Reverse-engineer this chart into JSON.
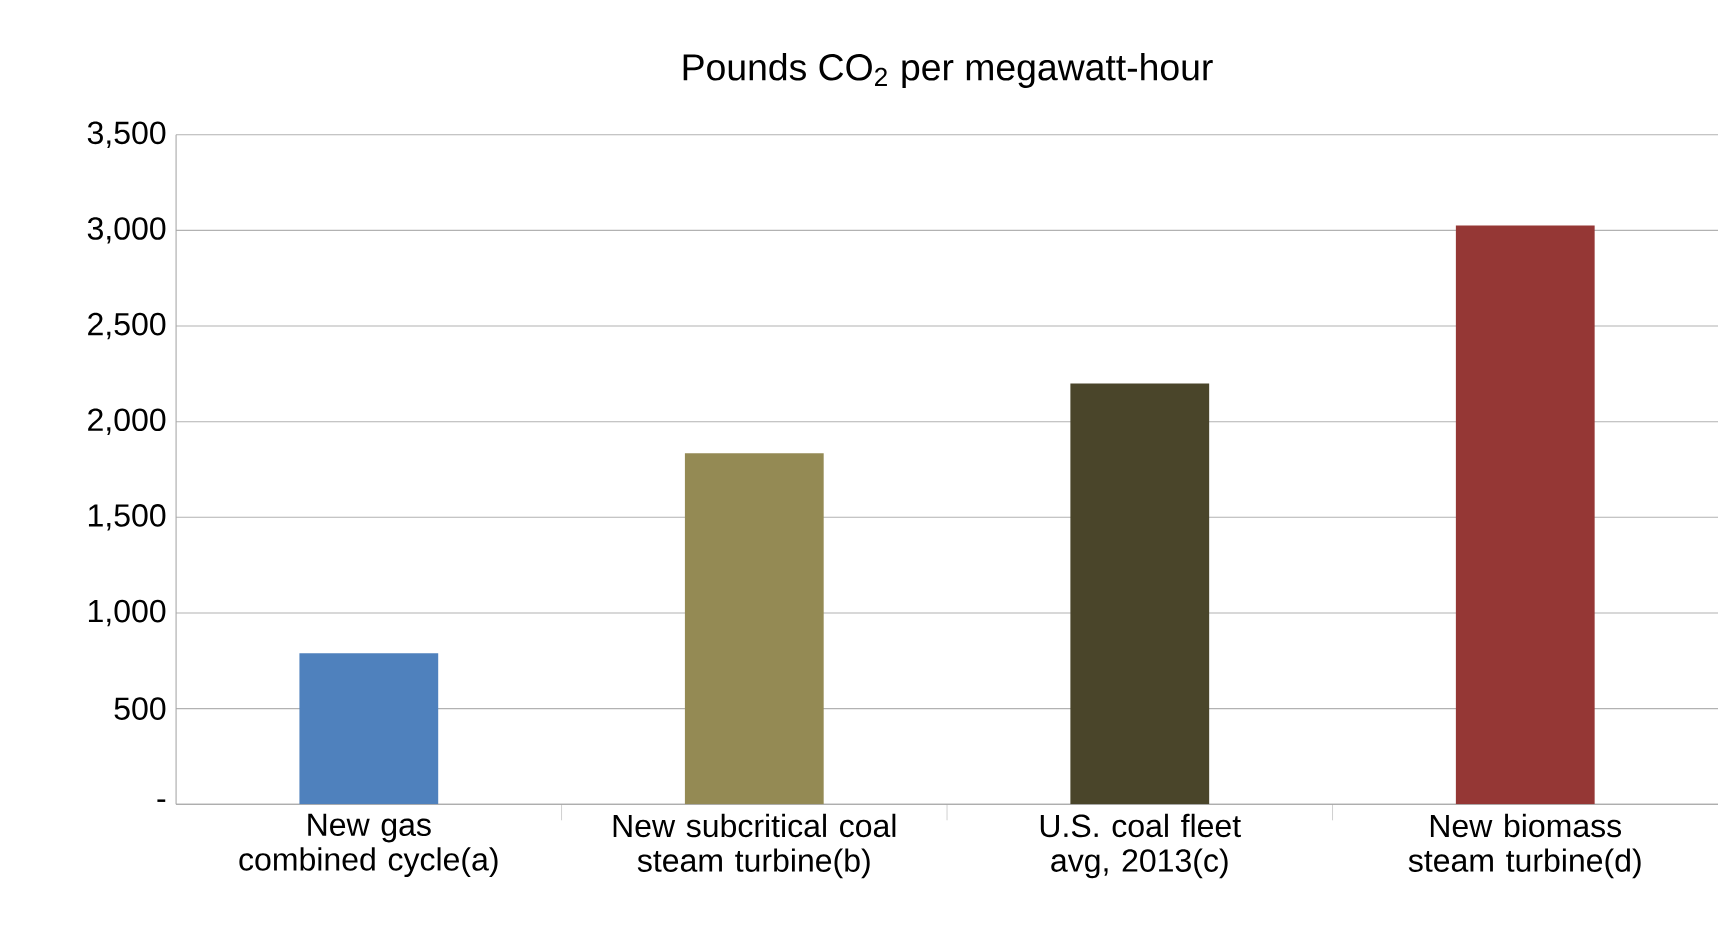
{
  "chart_data": {
    "type": "bar",
    "title": "Pounds CO$_{2}$ per megawatt-hour",
    "categories": [
      "New gas combined cycle(a)",
      "New subcritical coal steam turbine(b)",
      "U.S. coal fleet avg, 2013(c)",
      "New biomass steam turbine(d)"
    ],
    "values": [
      790,
      1835,
      2200,
      3025
    ],
    "colors": [
      "#4f81bd",
      "#948a54",
      "#4a452a",
      "#953735"
    ],
    "ylim": [
      0,
      3500
    ],
    "yticks": [
      {
        "value": 0,
        "label": "-"
      },
      {
        "value": 500,
        "label": "500"
      },
      {
        "value": 1000,
        "label": "1,000"
      },
      {
        "value": 1500,
        "label": "1,500"
      },
      {
        "value": 2000,
        "label": "2,000"
      },
      {
        "value": 2500,
        "label": "2,500"
      },
      {
        "value": 3000,
        "label": "3,000"
      },
      {
        "value": 3500,
        "label": "3,500"
      }
    ],
    "grid": "y"
  }
}
